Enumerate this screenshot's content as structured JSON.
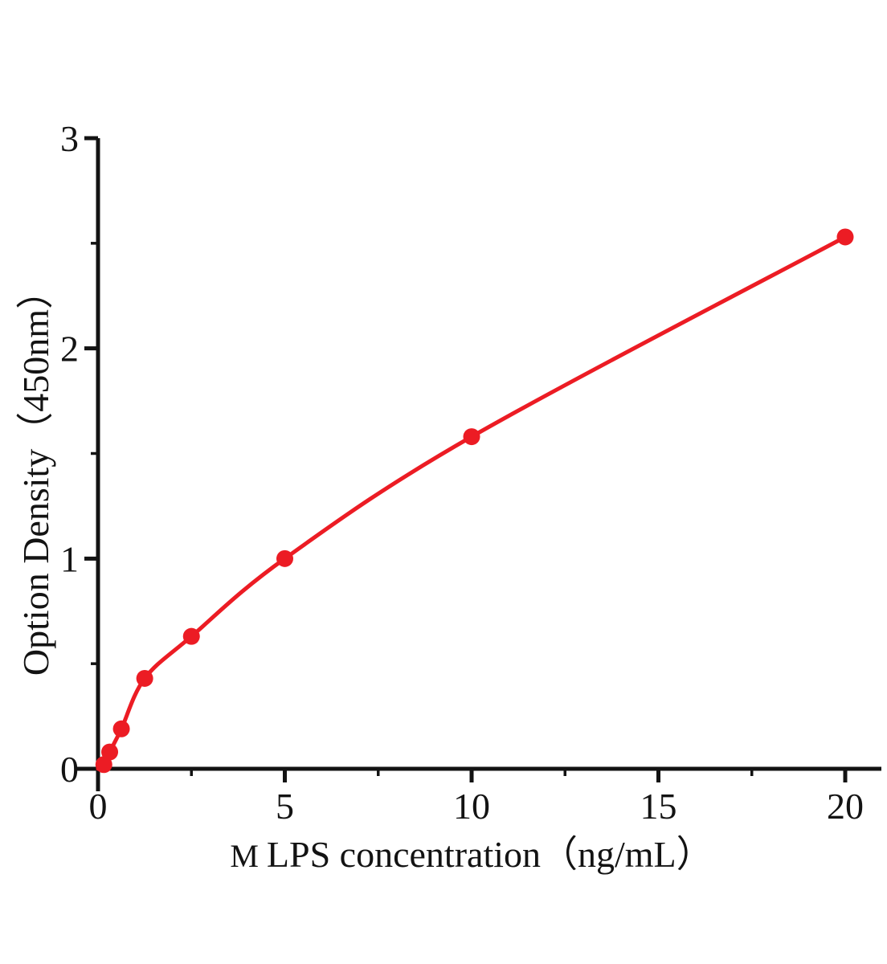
{
  "chart_data": {
    "type": "scatter",
    "subtype": "standard-curve-with-fit-line",
    "title": "",
    "xlabel": "M LPS concentration（ng/mL）",
    "xlabel_prefix": "M ",
    "xlabel_rest": "LPS concentration（ng/mL）",
    "ylabel": "Option Density（450nm）",
    "x": [
      0.156,
      0.3125,
      0.625,
      1.25,
      2.5,
      5,
      10,
      20
    ],
    "y": [
      0.02,
      0.08,
      0.19,
      0.43,
      0.63,
      1.0,
      1.58,
      2.53
    ],
    "curve_start": [
      0,
      0
    ],
    "xlim": [
      0,
      20
    ],
    "ylim": [
      0,
      3
    ],
    "x_major_ticks": [
      0,
      5,
      10,
      15,
      20
    ],
    "x_tick_labels": [
      "0",
      "5",
      "10",
      "15",
      "20"
    ],
    "x_minor_ticks": [
      2.5,
      7.5,
      12.5,
      17.5
    ],
    "y_major_ticks": [
      0,
      1,
      2,
      3
    ],
    "y_tick_labels": [
      "0",
      "1",
      "2",
      "3"
    ],
    "y_minor_ticks": [
      0.5,
      1.5,
      2.5
    ],
    "series_color": "#ec1c24",
    "axis_color": "#131313",
    "background": "#ffffff",
    "grid": false,
    "legend": "none",
    "marker": "filled-circle"
  }
}
